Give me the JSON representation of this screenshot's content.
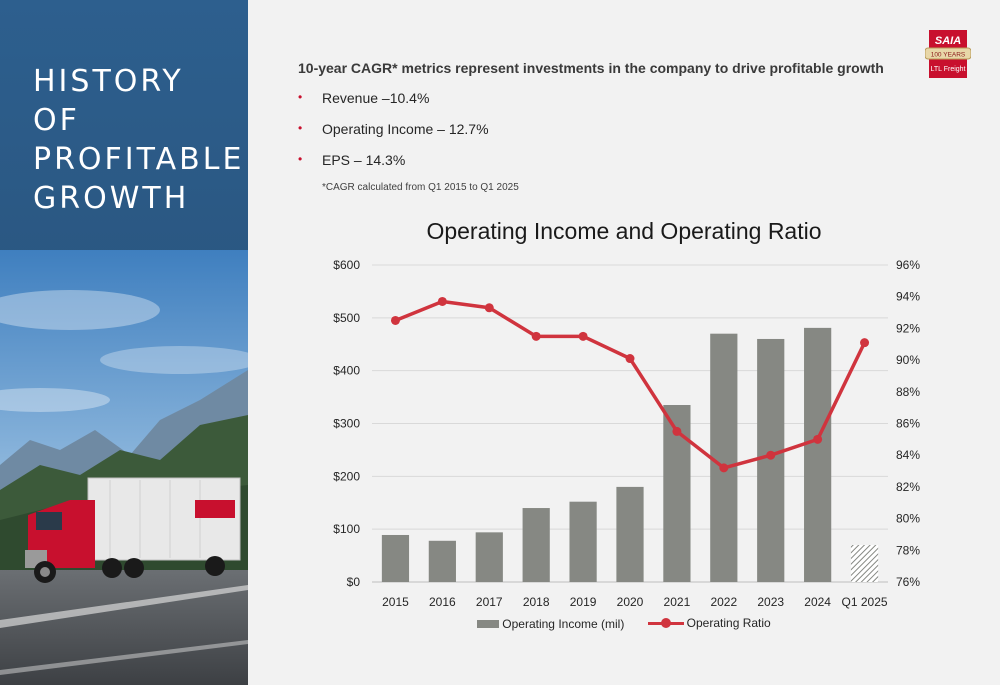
{
  "sidebar": {
    "title_lines": [
      "HISTORY OF",
      "PROFITABLE",
      "GROWTH"
    ]
  },
  "logo": {
    "brand": "SAIA",
    "badge": "100 YEARS",
    "sub": "LTL Freight"
  },
  "content": {
    "headline": "10-year CAGR* metrics represent investments in the company to drive profitable growth",
    "bullets": [
      "Revenue –10.4%",
      "Operating Income – 12.7%",
      "EPS – 14.3%"
    ],
    "footnote": "*CAGR calculated from Q1 2015 to Q1 2025"
  },
  "colors": {
    "bar": "#868883",
    "line": "#d0343e",
    "accent": "#c8102e"
  },
  "chart_data": {
    "type": "bar",
    "title": "Operating Income and Operating Ratio",
    "categories": [
      "2015",
      "2016",
      "2017",
      "2018",
      "2019",
      "2020",
      "2021",
      "2022",
      "2023",
      "2024",
      "Q1 2025"
    ],
    "series": [
      {
        "name": "Operating Income (mil)",
        "type": "bar",
        "axis": "left",
        "values": [
          89,
          78,
          94,
          140,
          152,
          180,
          335,
          470,
          460,
          481,
          70
        ],
        "hatched_last": true
      },
      {
        "name": "Operating Ratio",
        "type": "line",
        "axis": "right",
        "values": [
          92.5,
          93.7,
          93.3,
          91.5,
          91.5,
          90.1,
          85.5,
          83.2,
          84.0,
          85.0,
          91.1
        ]
      }
    ],
    "left_axis": {
      "ticks": [
        "$0",
        "$100",
        "$200",
        "$300",
        "$400",
        "$500",
        "$600"
      ],
      "ylim": [
        0,
        600
      ]
    },
    "right_axis": {
      "ticks": [
        "76%",
        "78%",
        "80%",
        "82%",
        "84%",
        "86%",
        "88%",
        "90%",
        "92%",
        "94%",
        "96%"
      ],
      "ylim": [
        76,
        96
      ]
    },
    "grid": true,
    "legend": "bottom"
  }
}
